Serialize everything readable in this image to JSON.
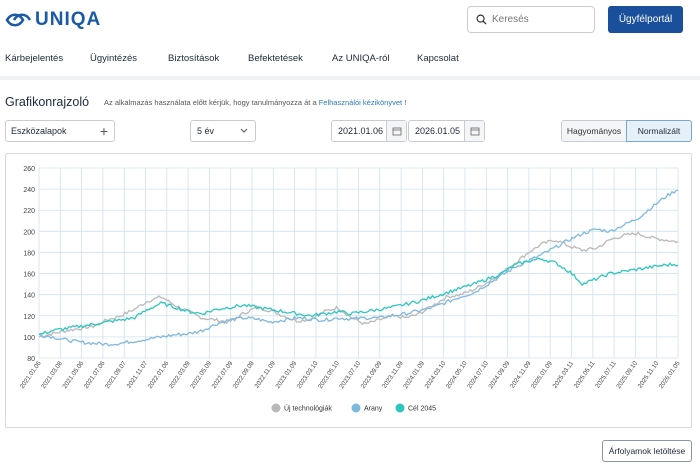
{
  "brand": {
    "name": "UNIQA",
    "color": "#1a5aa6"
  },
  "header": {
    "search_placeholder": "Keresés",
    "client_button": "Ügyfélportál"
  },
  "nav": {
    "items": [
      "Kárbejelentés",
      "Ügyintézés",
      "Biztosítások",
      "Befektetések",
      "Az UNIQA-ról",
      "Kapcsolat"
    ]
  },
  "page": {
    "title": "Grafikonrajzoló",
    "hint_prefix": "Az alkalmazás használata előtt kérjük, hogy tanulmányozza át a",
    "hint_link": "Felhasználói kézikönyvet",
    "hint_suffix": "!"
  },
  "controls": {
    "tools_label": "Eszközalapok",
    "period_selected": "5 év",
    "date_from": "2021.01.06",
    "date_to": "2026.01.05",
    "mode_traditional": "Hagyományos",
    "mode_normalized": "Normalizált"
  },
  "download_button": "Árfolyamok letöltése",
  "chart_data": {
    "type": "line",
    "title": "",
    "xlabel": "",
    "ylabel": "",
    "ylim": [
      80,
      260
    ],
    "yticks": [
      80,
      100,
      120,
      140,
      160,
      180,
      200,
      220,
      240,
      260
    ],
    "grid": true,
    "legend_position": "bottom",
    "x_ticks": [
      "2021.01.06",
      "2021.03.08",
      "2021.05.06",
      "2021.07.06",
      "2021.09.07",
      "2021.11.07",
      "2022.01.06",
      "2022.03.09",
      "2022.05.09",
      "2022.07.09",
      "2022.09.08",
      "2022.11.09",
      "2023.01.09",
      "2023.03.10",
      "2023.05.10",
      "2023.07.10",
      "2023.09.09",
      "2023.11.09",
      "2024.01.09",
      "2024.03.10",
      "2024.05.10",
      "2024.07.10",
      "2024.09.09",
      "2024.11.09",
      "2025.01.09",
      "2025.03.11",
      "2025.05.11",
      "2025.07.11",
      "2025.09.10",
      "2025.11.10",
      "2026.01.05"
    ],
    "series": [
      {
        "name": "Új technológiák",
        "color": "#b9b9b9",
        "values": [
          100,
          103,
          106,
          108,
          110,
          116,
          120,
          126,
          134,
          138,
          130,
          124,
          118,
          116,
          114,
          122,
          128,
          125,
          120,
          115,
          117,
          124,
          128,
          118,
          112,
          116,
          120,
          118,
          122,
          130,
          138,
          140,
          145,
          152,
          160,
          170,
          180,
          188,
          192,
          186,
          182,
          184,
          192,
          196,
          198,
          194,
          192,
          190
        ]
      },
      {
        "name": "Arany",
        "color": "#7fb8df",
        "values": [
          102,
          100,
          97,
          95,
          94,
          93,
          94,
          96,
          98,
          100,
          102,
          103,
          106,
          112,
          116,
          118,
          117,
          114,
          116,
          118,
          117,
          116,
          118,
          117,
          118,
          118,
          120,
          122,
          125,
          128,
          133,
          138,
          142,
          150,
          158,
          166,
          172,
          178,
          185,
          192,
          198,
          202,
          200,
          206,
          212,
          222,
          232,
          240
        ]
      },
      {
        "name": "Cél 2045",
        "color": "#2ec6bf",
        "values": [
          102,
          106,
          108,
          110,
          112,
          114,
          116,
          118,
          126,
          132,
          128,
          124,
          122,
          126,
          128,
          130,
          128,
          126,
          124,
          122,
          120,
          122,
          124,
          122,
          124,
          126,
          128,
          131,
          134,
          138,
          142,
          146,
          150,
          155,
          160,
          168,
          172,
          174,
          170,
          162,
          150,
          155,
          160,
          162,
          164,
          166,
          168,
          169
        ]
      }
    ]
  }
}
